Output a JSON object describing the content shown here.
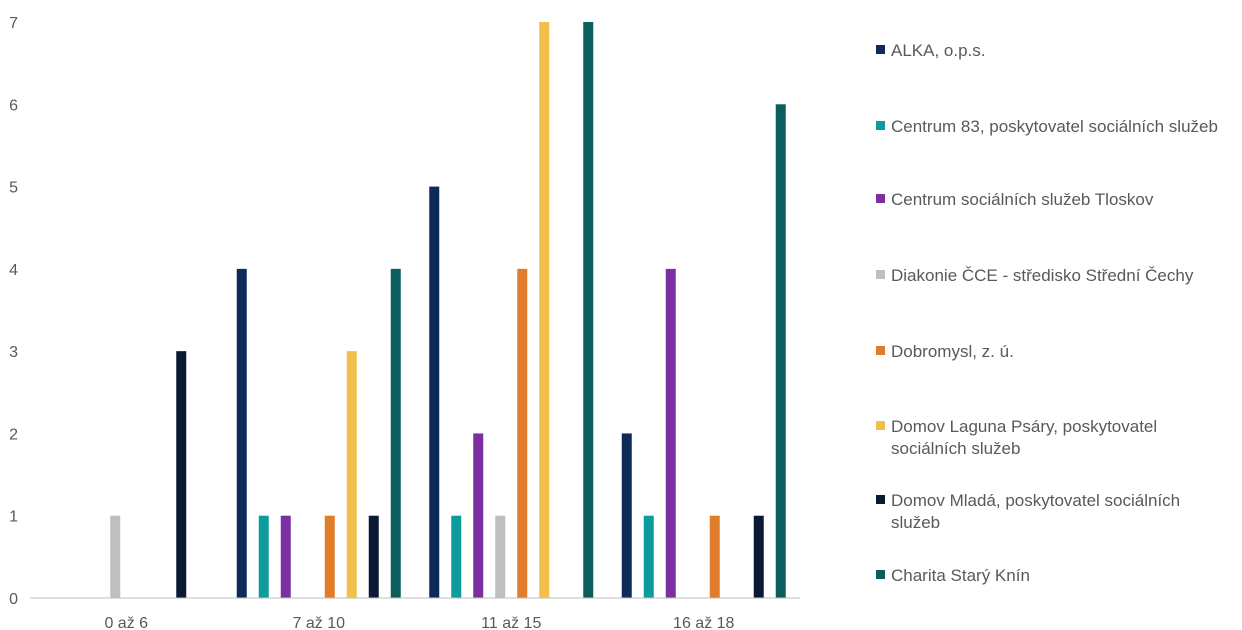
{
  "chart_data": {
    "type": "bar",
    "categories": [
      "0 až 6",
      "7 až 10",
      "11 až 15",
      "16 až 18"
    ],
    "ylim": [
      0,
      7
    ],
    "yticks": [
      "0",
      "1",
      "2",
      "3",
      "4",
      "5",
      "6",
      "7"
    ],
    "grid": false,
    "legend_position": "right",
    "series": [
      {
        "name": "ALKA, o.p.s.",
        "color": "#0e2a58",
        "values": [
          0,
          4,
          5,
          2
        ]
      },
      {
        "name": "Centrum 83, poskytovatel sociálních služeb",
        "color": "#0e9b9b",
        "values": [
          0,
          1,
          1,
          1
        ]
      },
      {
        "name": "Centrum sociálních služeb Tloskov",
        "color": "#7b2fa0",
        "values": [
          0,
          1,
          2,
          4
        ]
      },
      {
        "name": "Diakonie ČCE - středisko Střední Čechy",
        "color": "#bfbfbf",
        "values": [
          1,
          0,
          1,
          0
        ]
      },
      {
        "name": "Dobromysl, z. ú.",
        "color": "#e07c2a",
        "values": [
          0,
          1,
          4,
          1
        ]
      },
      {
        "name": "Domov Laguna Psáry, poskytovatel sociálních služeb",
        "color": "#f2bf4a",
        "values": [
          0,
          3,
          7,
          0
        ]
      },
      {
        "name": "Domov Mladá, poskytovatel sociálních služeb",
        "color": "#0b1a33",
        "values": [
          3,
          1,
          0,
          1
        ]
      },
      {
        "name": "Charita Starý Knín",
        "color": "#0a5e5e",
        "values": [
          0,
          4,
          7,
          6
        ]
      }
    ]
  }
}
